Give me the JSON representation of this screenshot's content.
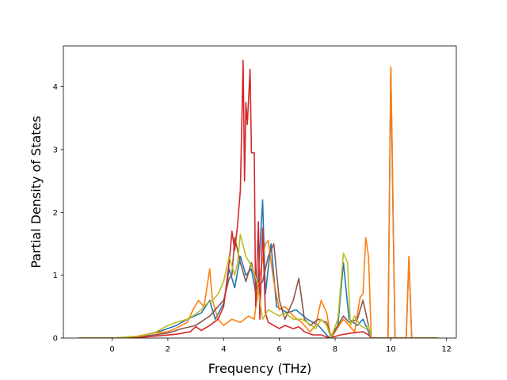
{
  "chart_data": {
    "type": "line",
    "title": "",
    "xlabel": "Frequency (THz)",
    "ylabel": "Partial Density of States",
    "xlim": [
      -1.75,
      12.35
    ],
    "ylim": [
      0,
      4.65
    ],
    "xticks": [
      0,
      2,
      4,
      6,
      8,
      10,
      12
    ],
    "yticks": [
      0,
      1,
      2,
      3,
      4
    ],
    "grid": false,
    "legend": "none",
    "series": [
      {
        "color": "#1f77b4",
        "points": [
          [
            -1.2,
            0
          ],
          [
            0,
            0
          ],
          [
            1,
            0.03
          ],
          [
            1.8,
            0.12
          ],
          [
            2.3,
            0.2
          ],
          [
            2.8,
            0.32
          ],
          [
            3.2,
            0.4
          ],
          [
            3.5,
            0.6
          ],
          [
            3.7,
            0.3
          ],
          [
            4.0,
            0.55
          ],
          [
            4.2,
            1.1
          ],
          [
            4.4,
            0.8
          ],
          [
            4.6,
            1.3
          ],
          [
            4.8,
            1.0
          ],
          [
            5.0,
            1.1
          ],
          [
            5.2,
            0.6
          ],
          [
            5.4,
            2.2
          ],
          [
            5.5,
            0.7
          ],
          [
            5.7,
            1.5
          ],
          [
            5.9,
            0.5
          ],
          [
            6.3,
            0.4
          ],
          [
            6.6,
            0.45
          ],
          [
            7.0,
            0.3
          ],
          [
            7.4,
            0.2
          ],
          [
            7.8,
            0
          ],
          [
            8.1,
            0.2
          ],
          [
            8.3,
            1.2
          ],
          [
            8.5,
            0.3
          ],
          [
            8.8,
            0.2
          ],
          [
            9.0,
            0.3
          ],
          [
            9.3,
            0
          ],
          [
            9.9,
            0
          ],
          [
            10.0,
            4.3
          ],
          [
            10.15,
            0
          ],
          [
            10.55,
            0
          ],
          [
            10.65,
            1.28
          ],
          [
            10.75,
            0
          ],
          [
            11.7,
            0
          ]
        ]
      },
      {
        "color": "#ff7f0e",
        "points": [
          [
            -1.2,
            0
          ],
          [
            0,
            0
          ],
          [
            0.8,
            0.02
          ],
          [
            1.5,
            0.08
          ],
          [
            2.0,
            0.1
          ],
          [
            2.4,
            0.18
          ],
          [
            2.7,
            0.25
          ],
          [
            2.9,
            0.45
          ],
          [
            3.1,
            0.6
          ],
          [
            3.3,
            0.5
          ],
          [
            3.5,
            1.1
          ],
          [
            3.6,
            0.6
          ],
          [
            3.8,
            0.3
          ],
          [
            4.0,
            0.2
          ],
          [
            4.3,
            0.3
          ],
          [
            4.6,
            0.25
          ],
          [
            4.9,
            0.35
          ],
          [
            5.1,
            0.3
          ],
          [
            5.3,
            1.0
          ],
          [
            5.5,
            1.5
          ],
          [
            5.6,
            1.55
          ],
          [
            5.8,
            0.9
          ],
          [
            6.0,
            0.45
          ],
          [
            6.2,
            0.5
          ],
          [
            6.5,
            0.35
          ],
          [
            6.8,
            0.25
          ],
          [
            7.1,
            0.1
          ],
          [
            7.3,
            0.2
          ],
          [
            7.5,
            0.6
          ],
          [
            7.7,
            0.4
          ],
          [
            7.85,
            0
          ],
          [
            8.0,
            0.1
          ],
          [
            8.3,
            0.3
          ],
          [
            8.5,
            0.2
          ],
          [
            8.7,
            0.1
          ],
          [
            8.9,
            0.65
          ],
          [
            9.0,
            0.7
          ],
          [
            9.1,
            1.6
          ],
          [
            9.2,
            1.3
          ],
          [
            9.3,
            0
          ],
          [
            9.9,
            0
          ],
          [
            10.0,
            4.32
          ],
          [
            10.05,
            3.0
          ],
          [
            10.15,
            0
          ],
          [
            10.55,
            0
          ],
          [
            10.65,
            1.3
          ],
          [
            10.75,
            0
          ],
          [
            11.7,
            0
          ]
        ]
      },
      {
        "color": "#8c564b",
        "points": [
          [
            -1.2,
            0
          ],
          [
            0,
            0
          ],
          [
            1,
            0.02
          ],
          [
            2,
            0.08
          ],
          [
            2.5,
            0.15
          ],
          [
            3.0,
            0.2
          ],
          [
            3.5,
            0.35
          ],
          [
            3.8,
            0.5
          ],
          [
            4.0,
            0.6
          ],
          [
            4.2,
            0.95
          ],
          [
            4.3,
            1.0
          ],
          [
            4.4,
            1.6
          ],
          [
            4.5,
            1.4
          ],
          [
            4.6,
            1.2
          ],
          [
            4.8,
            0.9
          ],
          [
            5.0,
            1.2
          ],
          [
            5.2,
            0.8
          ],
          [
            5.4,
            0.9
          ],
          [
            5.6,
            1.3
          ],
          [
            5.8,
            1.5
          ],
          [
            6.0,
            0.6
          ],
          [
            6.2,
            0.3
          ],
          [
            6.5,
            0.6
          ],
          [
            6.7,
            0.95
          ],
          [
            6.9,
            0.3
          ],
          [
            7.1,
            0.2
          ],
          [
            7.4,
            0.3
          ],
          [
            7.7,
            0.25
          ],
          [
            7.85,
            0
          ],
          [
            8.1,
            0.2
          ],
          [
            8.3,
            0.35
          ],
          [
            8.5,
            0.25
          ],
          [
            8.8,
            0.3
          ],
          [
            9.0,
            0.6
          ],
          [
            9.2,
            0.2
          ],
          [
            9.3,
            0
          ],
          [
            11.7,
            0
          ]
        ]
      },
      {
        "color": "#d62728",
        "points": [
          [
            -1.2,
            0
          ],
          [
            0,
            0
          ],
          [
            1,
            0.01
          ],
          [
            1.8,
            0.04
          ],
          [
            2.3,
            0.06
          ],
          [
            2.8,
            0.1
          ],
          [
            3.0,
            0.18
          ],
          [
            3.2,
            0.12
          ],
          [
            3.5,
            0.2
          ],
          [
            3.8,
            0.3
          ],
          [
            4.0,
            0.5
          ],
          [
            4.2,
            1.2
          ],
          [
            4.3,
            1.7
          ],
          [
            4.4,
            1.4
          ],
          [
            4.5,
            1.8
          ],
          [
            4.6,
            2.35
          ],
          [
            4.7,
            4.42
          ],
          [
            4.75,
            2.5
          ],
          [
            4.8,
            3.75
          ],
          [
            4.85,
            3.4
          ],
          [
            4.95,
            4.28
          ],
          [
            5.0,
            2.95
          ],
          [
            5.1,
            2.95
          ],
          [
            5.15,
            0.5
          ],
          [
            5.25,
            1.85
          ],
          [
            5.3,
            0.3
          ],
          [
            5.4,
            1.75
          ],
          [
            5.5,
            0.4
          ],
          [
            5.6,
            0.25
          ],
          [
            5.8,
            0.2
          ],
          [
            6.0,
            0.15
          ],
          [
            6.2,
            0.2
          ],
          [
            6.5,
            0.15
          ],
          [
            6.7,
            0.18
          ],
          [
            6.9,
            0.1
          ],
          [
            7.2,
            0.05
          ],
          [
            7.5,
            0.05
          ],
          [
            7.8,
            0
          ],
          [
            8.2,
            0.05
          ],
          [
            8.6,
            0.08
          ],
          [
            9.0,
            0.1
          ],
          [
            9.2,
            0.05
          ],
          [
            9.3,
            0
          ],
          [
            11.7,
            0
          ]
        ]
      },
      {
        "color": "#bcbd22",
        "points": [
          [
            -1.2,
            0
          ],
          [
            0,
            0
          ],
          [
            1,
            0.03
          ],
          [
            1.5,
            0.08
          ],
          [
            2.0,
            0.2
          ],
          [
            2.3,
            0.25
          ],
          [
            2.7,
            0.3
          ],
          [
            3.0,
            0.38
          ],
          [
            3.2,
            0.45
          ],
          [
            3.4,
            0.55
          ],
          [
            3.6,
            0.6
          ],
          [
            3.8,
            0.7
          ],
          [
            4.0,
            0.9
          ],
          [
            4.2,
            1.3
          ],
          [
            4.4,
            1.0
          ],
          [
            4.5,
            1.2
          ],
          [
            4.6,
            1.65
          ],
          [
            4.8,
            1.3
          ],
          [
            5.0,
            1.15
          ],
          [
            5.2,
            0.9
          ],
          [
            5.4,
            0.3
          ],
          [
            5.6,
            0.45
          ],
          [
            5.8,
            0.4
          ],
          [
            6.0,
            0.35
          ],
          [
            6.2,
            0.4
          ],
          [
            6.5,
            0.3
          ],
          [
            6.8,
            0.3
          ],
          [
            7.0,
            0.25
          ],
          [
            7.3,
            0.15
          ],
          [
            7.5,
            0.3
          ],
          [
            7.7,
            0.2
          ],
          [
            7.85,
            0
          ],
          [
            8.1,
            0.3
          ],
          [
            8.3,
            1.35
          ],
          [
            8.45,
            1.2
          ],
          [
            8.55,
            0.2
          ],
          [
            8.7,
            0.35
          ],
          [
            8.9,
            0.2
          ],
          [
            9.1,
            0.15
          ],
          [
            9.2,
            0.2
          ],
          [
            9.3,
            0
          ],
          [
            11.7,
            0
          ]
        ]
      }
    ]
  }
}
